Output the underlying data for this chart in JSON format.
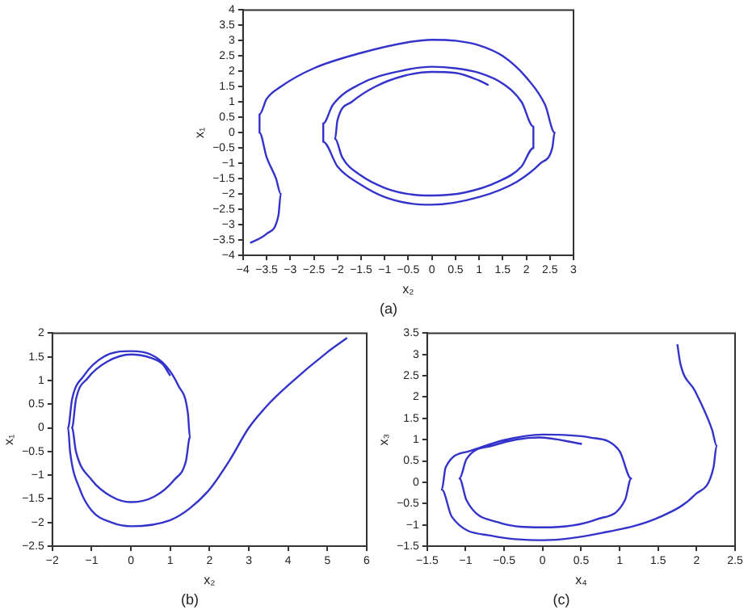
{
  "chart_data": [
    {
      "type": "line",
      "xlabel": "x₂",
      "ylabel": "x₁",
      "annotations": [
        "(a)"
      ],
      "marker": "none",
      "xlim": [
        -4,
        3
      ],
      "ylim": [
        -4,
        4
      ],
      "xticks": [
        -4,
        -3.5,
        -3,
        -2.5,
        -2,
        -1.5,
        -1,
        -0.5,
        0,
        0.5,
        1,
        1.5,
        2,
        2.5,
        3
      ],
      "yticks": [
        -4,
        -3.5,
        -3,
        -2.5,
        -2,
        -1.5,
        -1,
        -0.5,
        0,
        0.5,
        1,
        1.5,
        2,
        2.5,
        3,
        3.5,
        4
      ],
      "x": [
        -3.85,
        -3.5,
        -3.25,
        -3.2,
        -3.3,
        -3.5,
        -3.65,
        -3.65,
        -3.5,
        -3.2,
        -2.5,
        -1.5,
        -0.5,
        0,
        0.5,
        1,
        1.5,
        2,
        2.4,
        2.6,
        2.55,
        2.3,
        1.8,
        1,
        0,
        -0.5,
        -1,
        -1.5,
        -2,
        -2.3,
        -2.3,
        -2.1,
        -1.5,
        -0.7,
        0,
        0.5,
        1,
        1.5,
        1.9,
        2.15,
        2.15,
        1.9,
        1.4,
        0.7,
        0,
        -0.5,
        -1,
        -1.5,
        -1.9,
        -2.05,
        -2,
        -1.7,
        -1.2,
        -0.6,
        0,
        0.5,
        1,
        1.2
      ],
      "series": [
        {
          "color": "#3333cc",
          "values": [
            -3.6,
            -3.3,
            -2.7,
            -2,
            -1.5,
            -0.8,
            0,
            0.6,
            1.1,
            1.5,
            2.1,
            2.6,
            2.95,
            3.03,
            3,
            2.85,
            2.5,
            1.8,
            0.9,
            0,
            -0.5,
            -1,
            -1.6,
            -2.1,
            -2.35,
            -2.3,
            -2.1,
            -1.7,
            -1.1,
            -0.3,
            0.3,
            0.9,
            1.6,
            2,
            2.15,
            2.1,
            1.95,
            1.6,
            1,
            0.2,
            -0.5,
            -1.1,
            -1.6,
            -1.95,
            -2.05,
            -2,
            -1.8,
            -1.4,
            -0.8,
            -0.2,
            0.4,
            1,
            1.5,
            1.85,
            1.98,
            1.95,
            1.7,
            1.55
          ]
        }
      ]
    },
    {
      "type": "line",
      "xlabel": "x₂",
      "ylabel": "x₁",
      "annotations": [
        "(b)"
      ],
      "marker": "none",
      "xlim": [
        -2,
        6
      ],
      "ylim": [
        -2.5,
        2
      ],
      "xticks": [
        -2,
        -1,
        0,
        1,
        2,
        3,
        4,
        5,
        6
      ],
      "yticks": [
        -2.5,
        -2,
        -1.5,
        -1,
        -0.5,
        0,
        0.5,
        1,
        1.5,
        2
      ],
      "x": [
        5.5,
        5,
        4,
        3.5,
        3,
        2.5,
        2,
        1.5,
        1,
        0,
        -0.5,
        -1,
        -1.3,
        -1.55,
        -1.6,
        -1.5,
        -1.2,
        -0.7,
        0,
        0.5,
        0.9,
        1.2,
        1.45,
        1.5,
        1.4,
        1.1,
        0.6,
        0,
        -0.5,
        -1,
        -1.4,
        -1.5,
        -1.4,
        -1.1,
        -0.6,
        0,
        0.5,
        0.8,
        1
      ],
      "series": [
        {
          "color": "#3333cc",
          "values": [
            1.9,
            1.6,
            0.9,
            0.5,
            0,
            -0.7,
            -1.3,
            -1.7,
            -1.95,
            -2.08,
            -2,
            -1.75,
            -1.3,
            -0.5,
            0,
            0.6,
            1.1,
            1.5,
            1.62,
            1.55,
            1.3,
            0.9,
            0.3,
            -0.2,
            -0.7,
            -1.1,
            -1.45,
            -1.57,
            -1.45,
            -1.1,
            -0.5,
            0,
            0.6,
            1.05,
            1.4,
            1.55,
            1.48,
            1.35,
            1.1
          ]
        }
      ]
    },
    {
      "type": "line",
      "xlabel": "x₄",
      "ylabel": "x₃",
      "annotations": [
        "(c)"
      ],
      "marker": "none",
      "xlim": [
        -1.5,
        2.5
      ],
      "ylim": [
        -1.5,
        3.5
      ],
      "xticks": [
        -1.5,
        -1,
        -0.5,
        0,
        0.5,
        1,
        1.5,
        2,
        2.5
      ],
      "yticks": [
        -1.5,
        -1,
        -0.5,
        0,
        0.5,
        1,
        1.5,
        2,
        2.5,
        3,
        3.5
      ],
      "x": [
        1.75,
        1.79,
        1.98,
        2.2,
        2.26,
        2.22,
        1.98,
        1.53,
        0.77,
        0.02,
        -0.65,
        -1.18,
        -1.31,
        -1.26,
        -0.95,
        -0.5,
        0,
        0.62,
        1,
        1.15,
        1.07,
        0.7,
        0,
        -0.58,
        -0.99,
        -1.08,
        -0.99,
        -0.65,
        -0.05,
        0.51
      ],
      "series": [
        {
          "color": "#3333cc",
          "values": [
            3.24,
            2.78,
            2.14,
            1.24,
            0.86,
            0.35,
            -0.29,
            -0.81,
            -1.19,
            -1.36,
            -1.26,
            -0.81,
            -0.17,
            0.35,
            0.73,
            0.99,
            1.12,
            1.05,
            0.73,
            0.09,
            -0.42,
            -0.87,
            -1.06,
            -0.94,
            -0.42,
            0.09,
            0.54,
            0.86,
            1.05,
            0.9
          ]
        }
      ]
    }
  ]
}
